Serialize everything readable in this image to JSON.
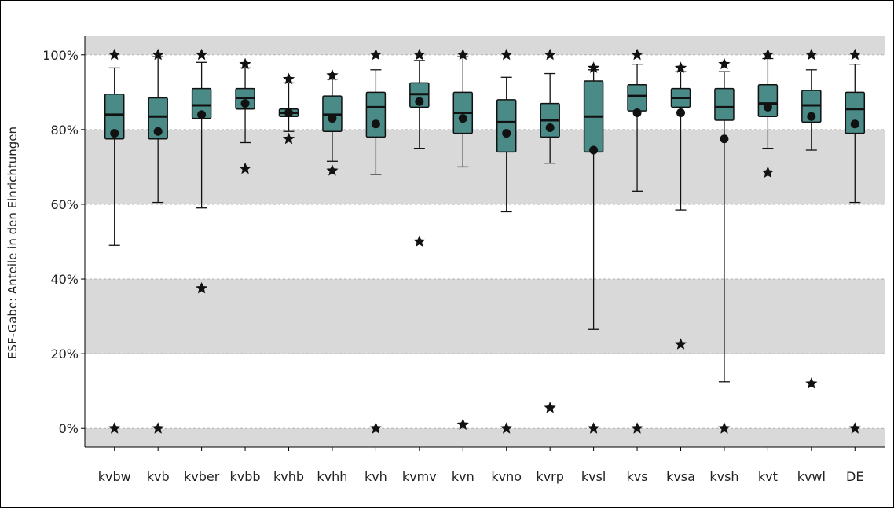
{
  "chart_data": {
    "type": "box",
    "ylabel": "ESF-Gabe: Anteile in den Einrichtungen",
    "xlabel": "",
    "ylim": [
      -5,
      105
    ],
    "y_ticks": [
      0,
      20,
      40,
      60,
      80,
      100
    ],
    "y_tick_labels": [
      "0%",
      "20%",
      "40%",
      "60%",
      "80%",
      "100%"
    ],
    "bands": [
      [
        100,
        105
      ],
      [
        60,
        80
      ],
      [
        20,
        40
      ],
      [
        -5,
        0
      ]
    ],
    "grid": "dashed horizontal at 0, 20, 40, 60, 80, 100",
    "colors": {
      "box_fill": "#4a8a87",
      "band": "#d9d9d9",
      "marker": "#111111"
    },
    "categories": [
      "kvbw",
      "kvb",
      "kvber",
      "kvbb",
      "kvhb",
      "kvhh",
      "kvh",
      "kvmv",
      "kvn",
      "kvno",
      "kvrp",
      "kvsl",
      "kvs",
      "kvsa",
      "kvsh",
      "kvt",
      "kvwl",
      "DE"
    ],
    "boxes": [
      {
        "category": "kvbw",
        "whisker_low": 49,
        "q1": 77.5,
        "median": 84,
        "q3": 89.5,
        "whisker_high": 96.5,
        "mean": 79,
        "outliers": [
          100,
          0
        ]
      },
      {
        "category": "kvb",
        "whisker_low": 60.5,
        "q1": 77.5,
        "median": 83.5,
        "q3": 88.5,
        "whisker_high": 99.5,
        "mean": 79.5,
        "outliers": [
          100,
          0
        ]
      },
      {
        "category": "kvber",
        "whisker_low": 59,
        "q1": 83,
        "median": 86.5,
        "q3": 91,
        "whisker_high": 98,
        "mean": 84,
        "outliers": [
          100,
          37.5
        ]
      },
      {
        "category": "kvbb",
        "whisker_low": 76.5,
        "q1": 85.5,
        "median": 88.5,
        "q3": 91,
        "whisker_high": 96.5,
        "mean": 87,
        "outliers": [
          97.5,
          69.5
        ]
      },
      {
        "category": "kvhb",
        "whisker_low": 79.5,
        "q1": 83.5,
        "median": 84.5,
        "q3": 85.5,
        "whisker_high": 92.5,
        "mean": 84.5,
        "outliers": [
          93.5,
          77.5
        ]
      },
      {
        "category": "kvhh",
        "whisker_low": 71.5,
        "q1": 79.5,
        "median": 84,
        "q3": 89,
        "whisker_high": 93.5,
        "mean": 83,
        "outliers": [
          94.5,
          69
        ]
      },
      {
        "category": "kvh",
        "whisker_low": 68,
        "q1": 78,
        "median": 86,
        "q3": 90,
        "whisker_high": 96,
        "mean": 81.5,
        "outliers": [
          100,
          0
        ]
      },
      {
        "category": "kvmv",
        "whisker_low": 75,
        "q1": 86,
        "median": 89.5,
        "q3": 92.5,
        "whisker_high": 98.5,
        "mean": 87.5,
        "outliers": [
          100,
          50
        ]
      },
      {
        "category": "kvn",
        "whisker_low": 70,
        "q1": 79,
        "median": 84.5,
        "q3": 90,
        "whisker_high": 99.5,
        "mean": 83,
        "outliers": [
          100,
          1
        ]
      },
      {
        "category": "kvno",
        "whisker_low": 58,
        "q1": 74,
        "median": 82,
        "q3": 88,
        "whisker_high": 94,
        "mean": 79,
        "outliers": [
          100,
          0
        ]
      },
      {
        "category": "kvrp",
        "whisker_low": 71,
        "q1": 78,
        "median": 82.5,
        "q3": 87,
        "whisker_high": 95,
        "mean": 80.5,
        "outliers": [
          100,
          5.5
        ]
      },
      {
        "category": "kvsl",
        "whisker_low": 26.5,
        "q1": 74,
        "median": 83.5,
        "q3": 93,
        "whisker_high": 96,
        "mean": 74.5,
        "outliers": [
          96.5,
          0
        ]
      },
      {
        "category": "kvs",
        "whisker_low": 63.5,
        "q1": 85,
        "median": 89,
        "q3": 92,
        "whisker_high": 97.5,
        "mean": 84.5,
        "outliers": [
          100,
          0
        ]
      },
      {
        "category": "kvsa",
        "whisker_low": 58.5,
        "q1": 86,
        "median": 88.5,
        "q3": 91,
        "whisker_high": 95.5,
        "mean": 84.5,
        "outliers": [
          96.5,
          22.5
        ]
      },
      {
        "category": "kvsh",
        "whisker_low": 12.5,
        "q1": 82.5,
        "median": 86,
        "q3": 91,
        "whisker_high": 95.5,
        "mean": 77.5,
        "outliers": [
          97.5,
          0
        ]
      },
      {
        "category": "kvt",
        "whisker_low": 75,
        "q1": 83.5,
        "median": 87,
        "q3": 92,
        "whisker_high": 99,
        "mean": 86,
        "outliers": [
          100,
          68.5
        ]
      },
      {
        "category": "kvwl",
        "whisker_low": 74.5,
        "q1": 82,
        "median": 86.5,
        "q3": 90.5,
        "whisker_high": 96,
        "mean": 83.5,
        "outliers": [
          100,
          12
        ]
      },
      {
        "category": "DE",
        "whisker_low": 60.5,
        "q1": 79,
        "median": 85.5,
        "q3": 90,
        "whisker_high": 97.5,
        "mean": 81.5,
        "outliers": [
          100,
          0
        ]
      }
    ]
  }
}
